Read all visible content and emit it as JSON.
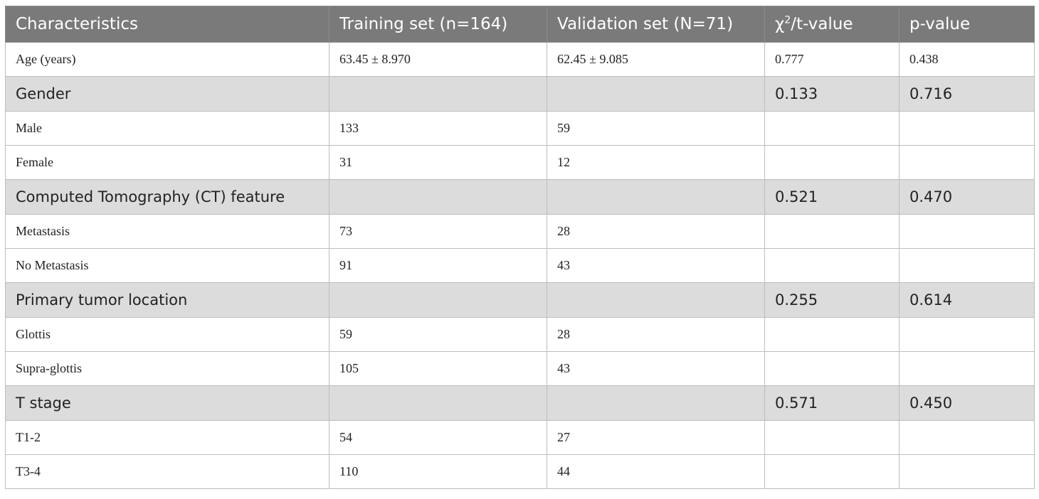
{
  "table": {
    "headers": {
      "characteristics": "Characteristics",
      "training": "Training set (n=164)",
      "validation": "Validation set (N=71)",
      "chi_symbol": "χ",
      "chi_sup": "2",
      "chi_rest": "/t-value",
      "pvalue": "p-value"
    },
    "rows": [
      {
        "type": "data",
        "label": "Age (years)",
        "training": "63.45 ± 8.970",
        "validation": "62.45 ± 9.085",
        "stat": "0.777",
        "p": "0.438"
      },
      {
        "type": "group",
        "label": "Gender",
        "training": "",
        "validation": "",
        "stat": "0.133",
        "p": "0.716"
      },
      {
        "type": "data",
        "label": "Male",
        "training": "133",
        "validation": "59",
        "stat": "",
        "p": ""
      },
      {
        "type": "data",
        "label": "Female",
        "training": "31",
        "validation": "12",
        "stat": "",
        "p": ""
      },
      {
        "type": "group",
        "label": "Computed Tomography (CT) feature",
        "training": "",
        "validation": "",
        "stat": "0.521",
        "p": "0.470"
      },
      {
        "type": "data",
        "label": "Metastasis",
        "training": "73",
        "validation": "28",
        "stat": "",
        "p": ""
      },
      {
        "type": "data",
        "label": "No Metastasis",
        "training": "91",
        "validation": "43",
        "stat": "",
        "p": ""
      },
      {
        "type": "group",
        "label": "Primary tumor location",
        "training": "",
        "validation": "",
        "stat": "0.255",
        "p": "0.614"
      },
      {
        "type": "data",
        "label": "Glottis",
        "training": "59",
        "validation": "28",
        "stat": "",
        "p": ""
      },
      {
        "type": "data",
        "label": "Supra-glottis",
        "training": "105",
        "validation": "43",
        "stat": "",
        "p": ""
      },
      {
        "type": "group",
        "label": "T stage",
        "training": "",
        "validation": "",
        "stat": "0.571",
        "p": "0.450"
      },
      {
        "type": "data",
        "label": "T1-2",
        "training": "54",
        "validation": "27",
        "stat": "",
        "p": ""
      },
      {
        "type": "data",
        "label": "T3-4",
        "training": "110",
        "validation": "44",
        "stat": "",
        "p": ""
      }
    ]
  },
  "colors": {
    "header_bg": "#7a7a7a",
    "header_text": "#ffffff",
    "group_bg": "#dcdcdc",
    "border": "#bdbdbd"
  }
}
